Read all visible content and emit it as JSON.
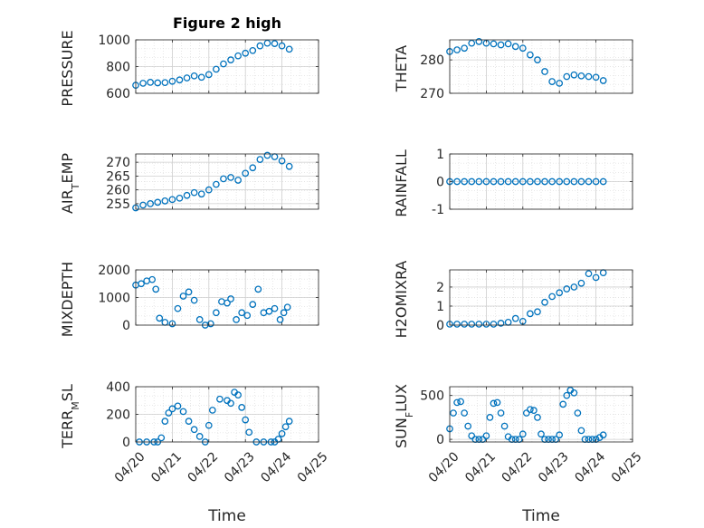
{
  "chart_data": [
    {
      "type": "scatter",
      "title": "Figure 2 high",
      "ylabel": "PRESSURE",
      "xlabel": "",
      "xlim": [
        0,
        5
      ],
      "ylim": [
        600,
        1000
      ],
      "yticks": [
        "600",
        "800",
        "1000"
      ],
      "xticks": [
        "04/20",
        "04/21",
        "04/22",
        "04/23",
        "04/24",
        "04/25"
      ],
      "x": [
        0,
        0.2,
        0.4,
        0.6,
        0.8,
        1.0,
        1.2,
        1.4,
        1.6,
        1.8,
        2.0,
        2.2,
        2.4,
        2.6,
        2.8,
        3.0,
        3.2,
        3.4,
        3.6,
        3.8,
        4.0,
        4.2
      ],
      "y": [
        660,
        675,
        682,
        678,
        680,
        690,
        700,
        715,
        730,
        720,
        740,
        780,
        820,
        850,
        880,
        900,
        920,
        955,
        975,
        972,
        955,
        930
      ]
    },
    {
      "type": "scatter",
      "title": "",
      "ylabel": "THETA",
      "xlabel": "",
      "xlim": [
        0,
        5
      ],
      "ylim": [
        270,
        286
      ],
      "yticks": [
        "270",
        "280"
      ],
      "xticks": [
        "04/20",
        "04/21",
        "04/22",
        "04/23",
        "04/24",
        "04/25"
      ],
      "x": [
        0,
        0.2,
        0.4,
        0.6,
        0.8,
        1.0,
        1.2,
        1.4,
        1.6,
        1.8,
        2.0,
        2.2,
        2.4,
        2.6,
        2.8,
        3.0,
        3.2,
        3.4,
        3.6,
        3.8,
        4.0,
        4.2
      ],
      "y": [
        282.5,
        283,
        283.5,
        285,
        285.5,
        285,
        284.8,
        284.5,
        284.8,
        284,
        283.5,
        281.5,
        280,
        276.5,
        273.5,
        273,
        275,
        275.5,
        275.2,
        275,
        274.8,
        273.8
      ]
    },
    {
      "type": "scatter",
      "title": "",
      "ylabel": "AIR_TEMP",
      "xlabel": "",
      "xlim": [
        0,
        5
      ],
      "ylim": [
        253,
        273
      ],
      "yticks": [
        "255",
        "260",
        "265",
        "270"
      ],
      "xticks": [
        "04/20",
        "04/21",
        "04/22",
        "04/23",
        "04/24",
        "04/25"
      ],
      "x": [
        0,
        0.2,
        0.4,
        0.6,
        0.8,
        1.0,
        1.2,
        1.4,
        1.6,
        1.8,
        2.0,
        2.2,
        2.4,
        2.6,
        2.8,
        3.0,
        3.2,
        3.4,
        3.6,
        3.8,
        4.0,
        4.2
      ],
      "y": [
        253.5,
        254.5,
        255,
        255.5,
        256,
        256.5,
        257,
        258,
        259,
        258.5,
        260,
        262,
        264,
        264.5,
        263.5,
        266,
        268,
        271,
        272.5,
        272,
        270.5,
        268.5
      ]
    },
    {
      "type": "scatter",
      "title": "",
      "ylabel": "RAINFALL",
      "xlabel": "",
      "xlim": [
        0,
        5
      ],
      "ylim": [
        -1,
        1
      ],
      "yticks": [
        "-1",
        "0",
        "1"
      ],
      "xticks": [
        "04/20",
        "04/21",
        "04/22",
        "04/23",
        "04/24",
        "04/25"
      ],
      "x": [
        0,
        0.2,
        0.4,
        0.6,
        0.8,
        1.0,
        1.2,
        1.4,
        1.6,
        1.8,
        2.0,
        2.2,
        2.4,
        2.6,
        2.8,
        3.0,
        3.2,
        3.4,
        3.6,
        3.8,
        4.0,
        4.2
      ],
      "y": [
        0,
        0,
        0,
        0,
        0,
        0,
        0,
        0,
        0,
        0,
        0,
        0,
        0,
        0,
        0,
        0,
        0,
        0,
        0,
        0,
        0,
        0
      ]
    },
    {
      "type": "scatter",
      "title": "",
      "ylabel": "MIXDEPTH",
      "xlabel": "",
      "xlim": [
        0,
        5
      ],
      "ylim": [
        0,
        2000
      ],
      "yticks": [
        "0",
        "1000",
        "2000"
      ],
      "xticks": [
        "04/20",
        "04/21",
        "04/22",
        "04/23",
        "04/24",
        "04/25"
      ],
      "x": [
        0,
        0.15,
        0.3,
        0.45,
        0.55,
        0.65,
        0.8,
        1.0,
        1.15,
        1.3,
        1.45,
        1.6,
        1.75,
        1.9,
        2.05,
        2.2,
        2.35,
        2.5,
        2.6,
        2.75,
        2.9,
        3.05,
        3.2,
        3.35,
        3.5,
        3.65,
        3.8,
        3.95,
        4.05,
        4.15
      ],
      "y": [
        1450,
        1500,
        1600,
        1650,
        1300,
        250,
        100,
        50,
        600,
        1050,
        1200,
        900,
        200,
        0,
        50,
        450,
        850,
        800,
        950,
        200,
        450,
        350,
        750,
        1300,
        450,
        500,
        600,
        200,
        450,
        650
      ]
    },
    {
      "type": "scatter",
      "title": "",
      "ylabel": "H2OMIXRA",
      "xlabel": "",
      "xlim": [
        0,
        5
      ],
      "ylim": [
        0,
        2.9
      ],
      "yticks": [
        "0",
        "1",
        "2"
      ],
      "xticks": [
        "04/20",
        "04/21",
        "04/22",
        "04/23",
        "04/24",
        "04/25"
      ],
      "x": [
        0,
        0.2,
        0.4,
        0.6,
        0.8,
        1.0,
        1.2,
        1.4,
        1.6,
        1.8,
        2.0,
        2.2,
        2.4,
        2.6,
        2.8,
        3.0,
        3.2,
        3.4,
        3.6,
        3.8,
        4.0,
        4.2
      ],
      "y": [
        0.05,
        0.05,
        0.05,
        0.05,
        0.05,
        0.05,
        0.05,
        0.1,
        0.15,
        0.35,
        0.2,
        0.6,
        0.7,
        1.2,
        1.5,
        1.7,
        1.9,
        2.0,
        2.2,
        2.7,
        2.5,
        2.75
      ]
    },
    {
      "type": "scatter",
      "title": "",
      "ylabel": "TERR_MSL",
      "xlabel": "Time",
      "xlim": [
        0,
        5
      ],
      "ylim": [
        0,
        400
      ],
      "yticks": [
        "0",
        "200",
        "400"
      ],
      "xticks": [
        "04/20",
        "04/21",
        "04/22",
        "04/23",
        "04/24",
        "04/25"
      ],
      "x": [
        0.1,
        0.3,
        0.5,
        0.6,
        0.7,
        0.8,
        0.9,
        1.0,
        1.15,
        1.3,
        1.45,
        1.6,
        1.75,
        1.9,
        2.0,
        2.1,
        2.3,
        2.5,
        2.6,
        2.7,
        2.8,
        2.9,
        3.0,
        3.1,
        3.3,
        3.5,
        3.7,
        3.8,
        3.9,
        4.0,
        4.1,
        4.2
      ],
      "y": [
        0,
        0,
        0,
        0,
        30,
        150,
        210,
        240,
        260,
        220,
        150,
        90,
        40,
        0,
        120,
        230,
        310,
        300,
        280,
        360,
        340,
        250,
        160,
        70,
        0,
        0,
        0,
        0,
        20,
        60,
        110,
        150
      ]
    },
    {
      "type": "scatter",
      "title": "",
      "ylabel": "SUN_FLUX",
      "xlabel": "Time",
      "xlim": [
        0,
        5
      ],
      "ylim": [
        -30,
        600
      ],
      "yticks": [
        "0",
        "500"
      ],
      "xticks": [
        "04/20",
        "04/21",
        "04/22",
        "04/23",
        "04/24",
        "04/25"
      ],
      "x": [
        0,
        0.1,
        0.2,
        0.3,
        0.4,
        0.5,
        0.6,
        0.7,
        0.8,
        0.9,
        1.0,
        1.1,
        1.2,
        1.3,
        1.4,
        1.5,
        1.6,
        1.7,
        1.8,
        1.9,
        2.0,
        2.1,
        2.2,
        2.3,
        2.4,
        2.5,
        2.6,
        2.7,
        2.8,
        2.9,
        3.0,
        3.1,
        3.2,
        3.3,
        3.4,
        3.5,
        3.6,
        3.7,
        3.8,
        3.9,
        4.0,
        4.1,
        4.2
      ],
      "y": [
        120,
        300,
        420,
        430,
        300,
        150,
        40,
        0,
        0,
        0,
        40,
        250,
        410,
        420,
        300,
        150,
        30,
        0,
        0,
        0,
        60,
        300,
        340,
        330,
        250,
        60,
        0,
        0,
        0,
        0,
        50,
        400,
        500,
        560,
        530,
        300,
        100,
        0,
        0,
        0,
        0,
        20,
        50
      ]
    }
  ]
}
